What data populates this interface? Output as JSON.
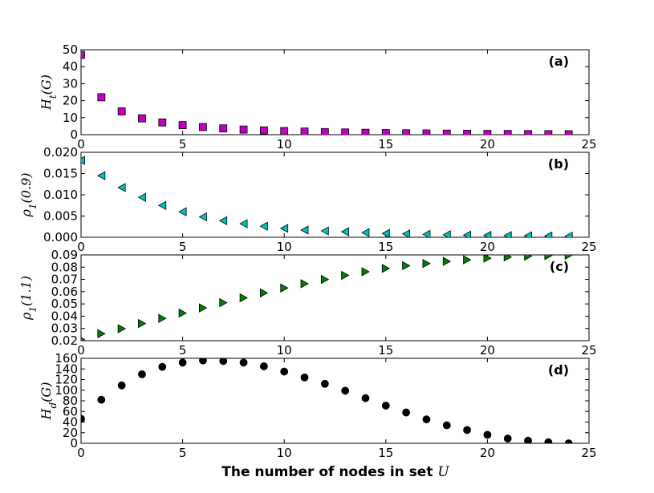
{
  "chart_data": [
    {
      "type": "scatter",
      "panel_label": "(a)",
      "ylabel": "H_t(G)",
      "marker": "square",
      "color": "#c000c0",
      "xlim": [
        0,
        25
      ],
      "ylim": [
        0,
        50
      ],
      "xticks": [
        0,
        5,
        10,
        15,
        20,
        25
      ],
      "yticks": [
        0,
        10,
        20,
        30,
        40,
        50
      ],
      "x": [
        0,
        1,
        2,
        3,
        4,
        5,
        6,
        7,
        8,
        9,
        10,
        11,
        12,
        13,
        14,
        15,
        16,
        17,
        18,
        19,
        20,
        21,
        22,
        23,
        24
      ],
      "y": [
        47.0,
        22.0,
        13.7,
        9.6,
        7.2,
        5.6,
        4.5,
        3.7,
        3.0,
        2.5,
        2.1,
        1.8,
        1.5,
        1.3,
        1.1,
        0.95,
        0.8,
        0.7,
        0.6,
        0.5,
        0.45,
        0.4,
        0.35,
        0.3,
        0.25
      ]
    },
    {
      "type": "scatter",
      "panel_label": "(b)",
      "ylabel": "ρ_1(0.9)",
      "marker": "triangle-left",
      "color": "#00c0c0",
      "xlim": [
        0,
        25
      ],
      "ylim": [
        0,
        0.02
      ],
      "xticks": [
        0,
        5,
        10,
        15,
        20,
        25
      ],
      "yticks": [
        "0.000",
        "0.005",
        "0.010",
        "0.015",
        "0.020"
      ],
      "x": [
        0,
        1,
        2,
        3,
        4,
        5,
        6,
        7,
        8,
        9,
        10,
        11,
        12,
        13,
        14,
        15,
        16,
        17,
        18,
        19,
        20,
        21,
        22,
        23,
        24
      ],
      "y": [
        0.0181,
        0.0145,
        0.0117,
        0.0094,
        0.0075,
        0.006,
        0.0048,
        0.0039,
        0.0032,
        0.0026,
        0.0021,
        0.0017,
        0.0015,
        0.0013,
        0.0011,
        0.0009,
        0.0008,
        0.0007,
        0.0006,
        0.0005,
        0.00045,
        0.0004,
        0.00035,
        0.0003,
        0.00025
      ]
    },
    {
      "type": "scatter",
      "panel_label": "(c)",
      "ylabel": "ρ_1(1.1)",
      "marker": "triangle-right",
      "color": "#008000",
      "xlim": [
        0,
        25
      ],
      "ylim": [
        0.02,
        0.09
      ],
      "xticks": [
        0,
        5,
        10,
        15,
        20,
        25
      ],
      "yticks": [
        "0.02",
        "0.03",
        "0.04",
        "0.05",
        "0.06",
        "0.07",
        "0.08",
        "0.09"
      ],
      "x": [
        0,
        1,
        2,
        3,
        4,
        5,
        6,
        7,
        8,
        9,
        10,
        11,
        12,
        13,
        14,
        15,
        16,
        17,
        18,
        19,
        20,
        21,
        22,
        23,
        24
      ],
      "y": [
        0.021,
        0.0257,
        0.0298,
        0.034,
        0.0382,
        0.0425,
        0.0468,
        0.051,
        0.055,
        0.059,
        0.063,
        0.0665,
        0.07,
        0.0733,
        0.0763,
        0.079,
        0.0812,
        0.083,
        0.0847,
        0.086,
        0.0873,
        0.0883,
        0.089,
        0.0895,
        0.0898
      ]
    },
    {
      "type": "scatter",
      "panel_label": "(d)",
      "ylabel": "H_d(G)",
      "marker": "circle",
      "color": "#000000",
      "xlim": [
        0,
        25
      ],
      "ylim": [
        0,
        160
      ],
      "xticks": [
        0,
        5,
        10,
        15,
        20,
        25
      ],
      "yticks": [
        0,
        20,
        40,
        60,
        80,
        100,
        120,
        140,
        160
      ],
      "xlabel": "The number of nodes in set U",
      "x": [
        0,
        1,
        2,
        3,
        4,
        5,
        6,
        7,
        8,
        9,
        10,
        11,
        12,
        13,
        14,
        15,
        16,
        17,
        18,
        19,
        20,
        21,
        22,
        23,
        24
      ],
      "y": [
        46,
        82,
        109,
        130,
        144,
        152,
        156,
        155,
        152,
        145,
        135,
        124,
        112,
        99,
        85,
        71,
        58,
        45,
        34,
        25,
        16,
        9,
        5,
        2,
        0
      ]
    }
  ]
}
